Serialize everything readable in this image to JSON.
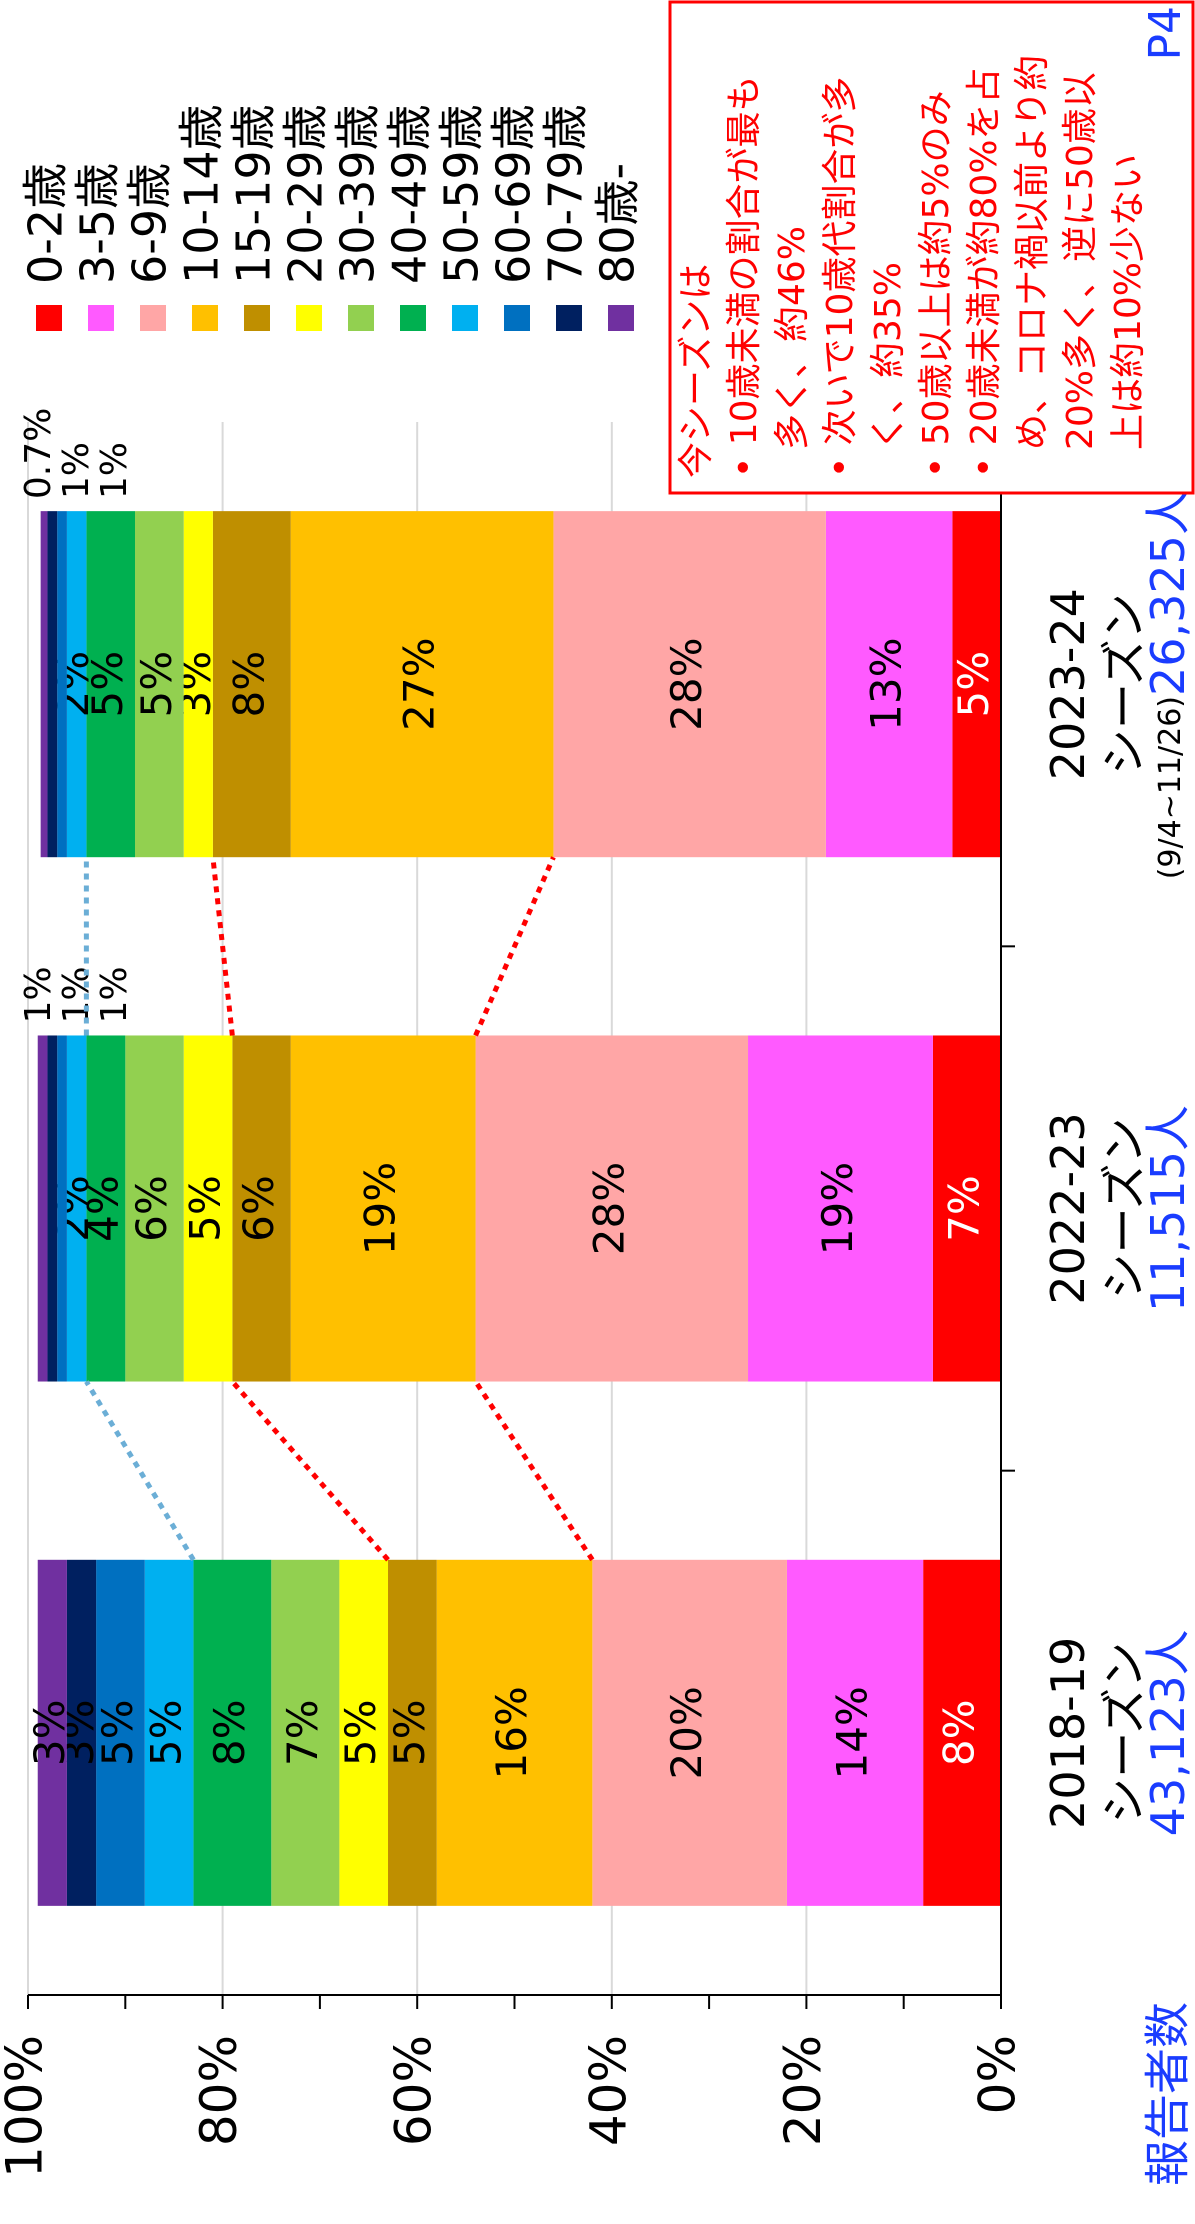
{
  "chart_data": {
    "type": "stacked_bar",
    "categories": [
      "2018-19\nシーズン",
      "2022-23\nシーズン",
      "2023-24\nシーズン"
    ],
    "reporter_label": "報告者数",
    "reporter_counts": [
      "43,123人",
      "11,515人",
      "26,325人"
    ],
    "period_note": "(9/4~11/26)",
    "ylim": [
      0,
      100
    ],
    "yticks": [
      {
        "value": 0,
        "label": "0%"
      },
      {
        "value": 20,
        "label": "20%"
      },
      {
        "value": 40,
        "label": "40%"
      },
      {
        "value": 60,
        "label": "60%"
      },
      {
        "value": 80,
        "label": "80%"
      },
      {
        "value": 100,
        "label": "100%"
      }
    ],
    "minor_yticks": [
      10,
      30,
      50,
      70,
      90
    ],
    "grid": true,
    "series": [
      {
        "name": "0-2歳",
        "color": "#ff0000",
        "label_color": "#ffffff",
        "values": [
          8,
          7,
          5
        ],
        "value_labels": [
          "8%",
          "7%",
          "5%"
        ]
      },
      {
        "name": "3-5歳",
        "color": "#ff5aff",
        "values": [
          14,
          19,
          13
        ],
        "value_labels": [
          "14%",
          "19%",
          "13%"
        ]
      },
      {
        "name": "6-9歳",
        "color": "#ffa6a6",
        "values": [
          20,
          28,
          28
        ],
        "value_labels": [
          "20%",
          "28%",
          "28%"
        ]
      },
      {
        "name": "10-14歳",
        "color": "#ffc000",
        "values": [
          16,
          19,
          27
        ],
        "value_labels": [
          "16%",
          "19%",
          "27%"
        ]
      },
      {
        "name": "15-19歳",
        "color": "#bf8f00",
        "values": [
          5,
          6,
          8
        ],
        "value_labels": [
          "5%",
          "6%",
          "8%"
        ]
      },
      {
        "name": "20-29歳",
        "color": "#ffff00",
        "values": [
          5,
          5,
          3
        ],
        "value_labels": [
          "5%",
          "5%",
          "3%"
        ]
      },
      {
        "name": "30-39歳",
        "color": "#92d050",
        "values": [
          7,
          6,
          5
        ],
        "value_labels": [
          "7%",
          "6%",
          "5%"
        ]
      },
      {
        "name": "40-49歳",
        "color": "#00b050",
        "values": [
          8,
          4,
          5
        ],
        "value_labels": [
          "8%",
          "4%",
          "5%"
        ]
      },
      {
        "name": "50-59歳",
        "color": "#00b0f0",
        "values": [
          5,
          2,
          2
        ],
        "value_labels": [
          "5%",
          "2%",
          "2%"
        ]
      },
      {
        "name": "60-69歳",
        "color": "#0070c0",
        "values": [
          5,
          1,
          1
        ],
        "value_labels": [
          "5%",
          "1%",
          "1%"
        ]
      },
      {
        "name": "70-79歳",
        "color": "#002060",
        "values": [
          3,
          1,
          1
        ],
        "value_labels": [
          "3%",
          "1%",
          "1%"
        ]
      },
      {
        "name": "80歳-",
        "color": "#7030a0",
        "values": [
          3,
          1,
          0.7
        ],
        "value_labels": [
          "3%",
          "1%",
          "0.7%"
        ]
      }
    ],
    "connectors": [
      {
        "after_series": 2,
        "color": "#ff0000"
      },
      {
        "after_series": 4,
        "color": "#ff0000"
      },
      {
        "after_series": 7,
        "color": "#6baed6"
      }
    ],
    "annotation": {
      "lines": [
        "今シーズンは",
        "• 10歳未満の割合が最も",
        "多く、約46%",
        "• 次いで10歳代割合が多",
        "く、約35%",
        "• 50歳以上は約5%のみ",
        "• 20歳未満が約80%を占",
        "め、コロナ禍以前より約",
        "20%多く、逆に50歳以",
        "上は約10%少ない"
      ],
      "color": "#ff0000"
    },
    "page_label": "P4"
  }
}
